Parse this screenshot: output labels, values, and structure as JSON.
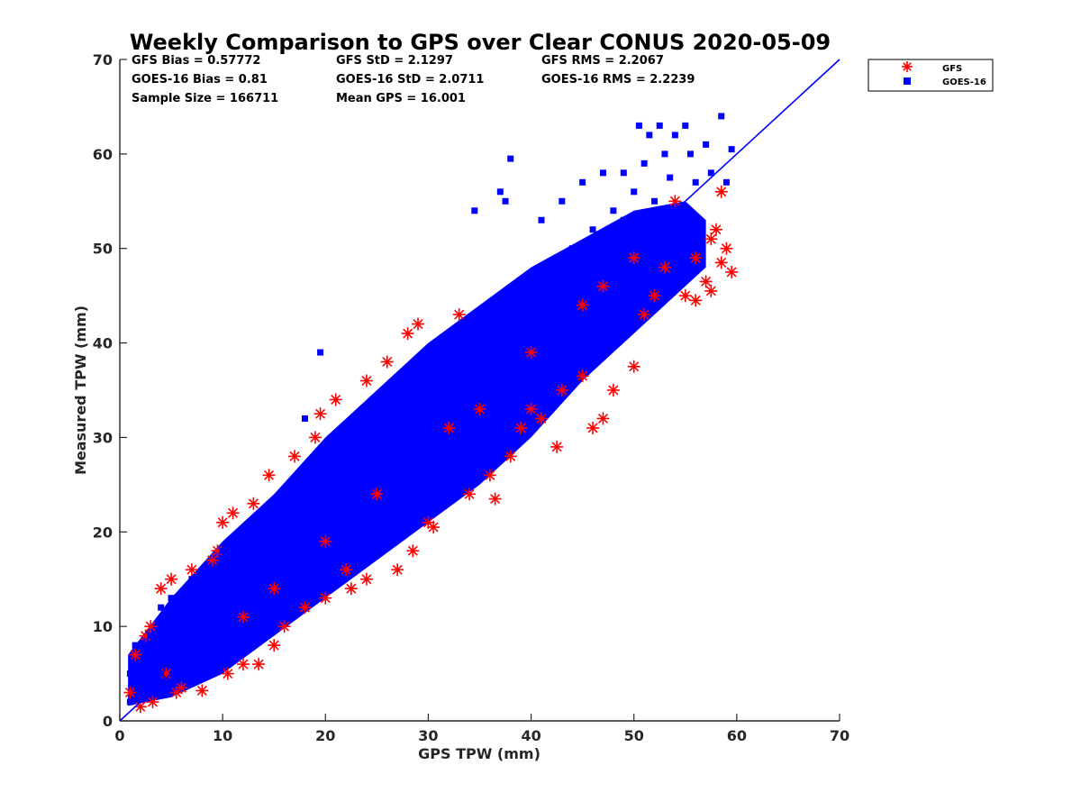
{
  "chart_data": {
    "type": "scatter",
    "title": "Weekly Comparison to GPS over Clear CONUS 2020-05-09",
    "xlabel": "GPS TPW (mm)",
    "ylabel": "Measured TPW (mm)",
    "xlim": [
      0,
      70
    ],
    "ylim": [
      0,
      70
    ],
    "xticks": [
      "0",
      "10",
      "20",
      "30",
      "40",
      "50",
      "60",
      "70"
    ],
    "yticks": [
      "0",
      "10",
      "20",
      "30",
      "40",
      "50",
      "60",
      "70"
    ],
    "grid": false,
    "legend_position": "outside top-right",
    "one_to_one_line": true,
    "stats": [
      [
        "GFS Bias = 0.57772",
        "GFS StD = 2.1297",
        "GFS RMS = 2.2067"
      ],
      [
        "GOES-16 Bias = 0.81",
        "GOES-16 StD = 2.0711",
        "GOES-16 RMS = 2.2239"
      ],
      [
        "Sample Size = 166711",
        "Mean GPS = 16.001",
        ""
      ]
    ],
    "series": [
      {
        "name": "GFS",
        "marker": "asterisk",
        "color": "#ff0000",
        "points": [
          [
            1,
            3
          ],
          [
            1.5,
            7
          ],
          [
            2,
            1.5
          ],
          [
            2.5,
            9
          ],
          [
            3,
            10
          ],
          [
            3.2,
            2
          ],
          [
            4,
            14
          ],
          [
            4.5,
            5
          ],
          [
            5,
            15
          ],
          [
            5.5,
            3
          ],
          [
            6,
            3.5
          ],
          [
            7,
            16
          ],
          [
            8,
            3.2
          ],
          [
            9,
            17
          ],
          [
            9.5,
            18
          ],
          [
            10,
            21
          ],
          [
            10.5,
            5
          ],
          [
            11,
            22
          ],
          [
            12,
            6
          ],
          [
            12,
            11
          ],
          [
            13,
            23
          ],
          [
            13.5,
            6
          ],
          [
            14.5,
            26
          ],
          [
            15,
            8
          ],
          [
            16,
            10
          ],
          [
            17,
            28
          ],
          [
            18,
            12
          ],
          [
            19,
            30
          ],
          [
            19.5,
            32.5
          ],
          [
            20,
            13
          ],
          [
            21,
            34
          ],
          [
            22,
            16
          ],
          [
            22.5,
            14
          ],
          [
            24,
            36
          ],
          [
            24,
            15
          ],
          [
            26,
            38
          ],
          [
            27,
            16
          ],
          [
            28,
            41
          ],
          [
            29,
            42
          ],
          [
            28.5,
            18
          ],
          [
            30,
            21
          ],
          [
            30.5,
            20.5
          ],
          [
            33,
            43
          ],
          [
            34,
            24
          ],
          [
            36,
            26
          ],
          [
            36.5,
            23.5
          ],
          [
            38,
            28
          ],
          [
            39,
            31
          ],
          [
            40,
            33
          ],
          [
            41,
            32
          ],
          [
            42.5,
            29
          ],
          [
            43,
            35
          ],
          [
            45,
            36.5
          ],
          [
            46,
            31
          ],
          [
            47,
            32
          ],
          [
            48,
            35
          ],
          [
            50,
            37.5
          ],
          [
            51,
            43
          ],
          [
            52,
            45
          ],
          [
            53,
            48
          ],
          [
            54,
            55
          ],
          [
            55,
            45
          ],
          [
            56,
            44.5
          ],
          [
            56,
            49
          ],
          [
            57,
            46.5
          ],
          [
            57.5,
            45.5
          ],
          [
            57.5,
            51
          ],
          [
            58,
            52
          ],
          [
            58.5,
            48.5
          ],
          [
            58.5,
            56
          ],
          [
            59,
            50
          ],
          [
            59.5,
            47.5
          ],
          [
            25,
            24
          ],
          [
            35,
            33
          ],
          [
            45,
            44
          ],
          [
            15,
            14
          ],
          [
            40,
            39
          ],
          [
            47,
            46
          ],
          [
            50,
            49
          ],
          [
            32,
            31
          ],
          [
            20,
            19
          ]
        ]
      },
      {
        "name": "GOES-16",
        "marker": "square",
        "color": "#0000ff",
        "points": [
          [
            1,
            2
          ],
          [
            1,
            5
          ],
          [
            1.5,
            8
          ],
          [
            2,
            4
          ],
          [
            2.5,
            7
          ],
          [
            3,
            3
          ],
          [
            3,
            9
          ],
          [
            4,
            5
          ],
          [
            4,
            12
          ],
          [
            5,
            7
          ],
          [
            5,
            13
          ],
          [
            6,
            9
          ],
          [
            7,
            8
          ],
          [
            7,
            15
          ],
          [
            8,
            11
          ],
          [
            9,
            10
          ],
          [
            10,
            13
          ],
          [
            10,
            18
          ],
          [
            11,
            15
          ],
          [
            12,
            12
          ],
          [
            12,
            19
          ],
          [
            13,
            16
          ],
          [
            14,
            15
          ],
          [
            14,
            22
          ],
          [
            15,
            18
          ],
          [
            16,
            17
          ],
          [
            17,
            21
          ],
          [
            18,
            20
          ],
          [
            18,
            32
          ],
          [
            19,
            24
          ],
          [
            19.5,
            39
          ],
          [
            20,
            23
          ],
          [
            21,
            25
          ],
          [
            22,
            22
          ],
          [
            23,
            28
          ],
          [
            24,
            27
          ],
          [
            25,
            30
          ],
          [
            26,
            26
          ],
          [
            27,
            32
          ],
          [
            28,
            31
          ],
          [
            29,
            34
          ],
          [
            30,
            29
          ],
          [
            31,
            36
          ],
          [
            32,
            35
          ],
          [
            33,
            38
          ],
          [
            34,
            33
          ],
          [
            34.5,
            54
          ],
          [
            35,
            40
          ],
          [
            36,
            37
          ],
          [
            37,
            56
          ],
          [
            37.5,
            55
          ],
          [
            38,
            42
          ],
          [
            38,
            59.5
          ],
          [
            39,
            44
          ],
          [
            40,
            40
          ],
          [
            40,
            47
          ],
          [
            41,
            53
          ],
          [
            42,
            46
          ],
          [
            43,
            45
          ],
          [
            43,
            55
          ],
          [
            44,
            50
          ],
          [
            45,
            48
          ],
          [
            45,
            57
          ],
          [
            46,
            52
          ],
          [
            47,
            50
          ],
          [
            47,
            58
          ],
          [
            48,
            54
          ],
          [
            49,
            58
          ],
          [
            49,
            53
          ],
          [
            50,
            56
          ],
          [
            50.5,
            63
          ],
          [
            51,
            59
          ],
          [
            51.5,
            62
          ],
          [
            52,
            55
          ],
          [
            52.5,
            63
          ],
          [
            53,
            60
          ],
          [
            53.5,
            57.5
          ],
          [
            54,
            62
          ],
          [
            55,
            63
          ],
          [
            55.5,
            60
          ],
          [
            56,
            57
          ],
          [
            57,
            61
          ],
          [
            57.5,
            58
          ],
          [
            58.5,
            64
          ],
          [
            59,
            57
          ],
          [
            59.5,
            60.5
          ],
          [
            52,
            47
          ],
          [
            48,
            46
          ],
          [
            44,
            41
          ],
          [
            36,
            34
          ],
          [
            26,
            24
          ],
          [
            16,
            15
          ]
        ]
      }
    ]
  }
}
